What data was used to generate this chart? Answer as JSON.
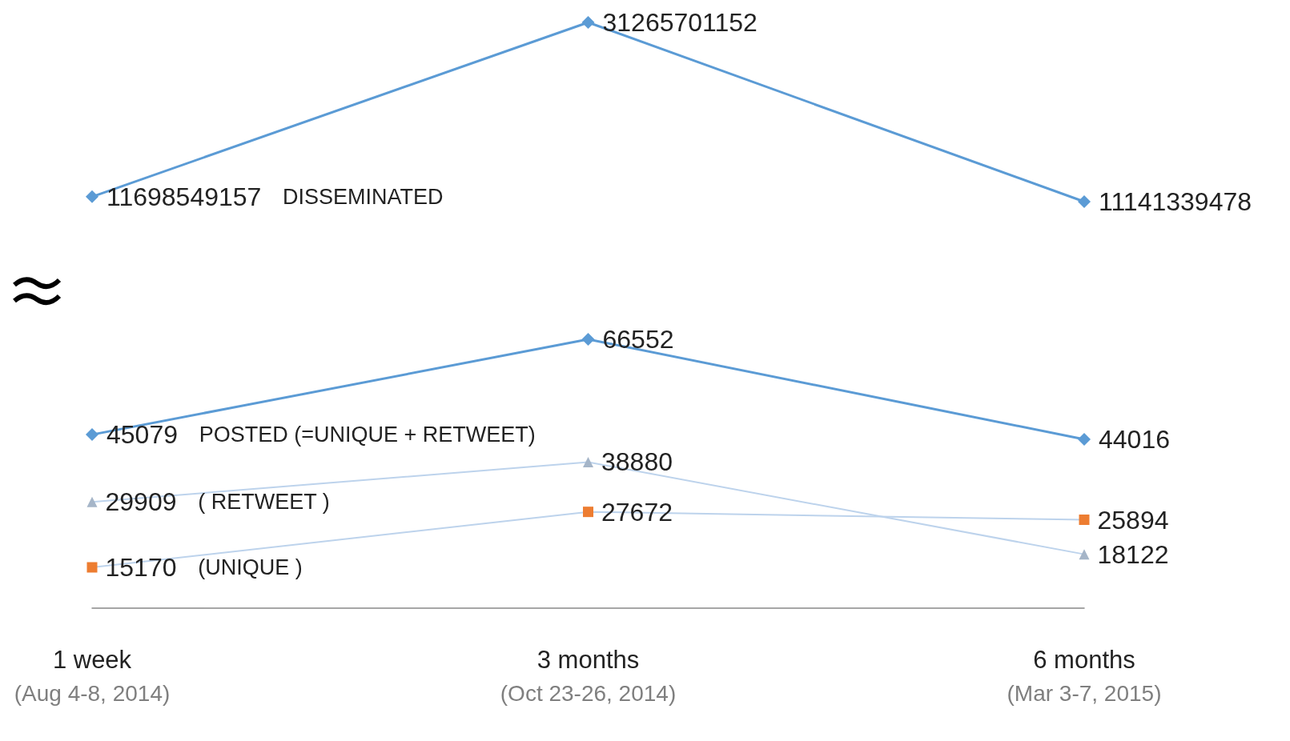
{
  "chart_data": [
    {
      "type": "line",
      "categories": [
        null,
        null,
        null
      ],
      "tick_labels": "x",
      "data_labels": true,
      "legend": false,
      "series": [
        {
          "name": "DISSEMINATED",
          "color": "#5b9bd5",
          "marker": "diamond",
          "values": [
            11698549157,
            31265701152,
            11141339478
          ]
        }
      ]
    },
    {
      "type": "line",
      "categories": [
        "1 week\n(Aug 4-8, 2014)",
        "3 months\n(Oct 23-26, 2014)",
        "6 months\n(Mar 3-7, 2015)"
      ],
      "tick_labels": "x",
      "data_labels": true,
      "legend": false,
      "series": [
        {
          "name": "POSTED (=UNIQUE + RETWEET)",
          "color": "#5b9bd5",
          "marker": "diamond",
          "values": [
            45079,
            66552,
            44016
          ]
        },
        {
          "name": "( RETWEET )",
          "color": "#bdd3ec",
          "colors": [
            "#a5b5c8",
            "#a5b5c8",
            "#a5b5c8"
          ],
          "marker": "triangle",
          "values": [
            29909,
            38880,
            18122
          ]
        },
        {
          "name": "(UNIQUE )",
          "color": "#bdd3ec",
          "colors": [
            "#ed7d31",
            "#ed7d31",
            "#ed7d31"
          ],
          "marker": "square",
          "values": [
            15170,
            27672,
            25894
          ]
        }
      ]
    }
  ]
}
